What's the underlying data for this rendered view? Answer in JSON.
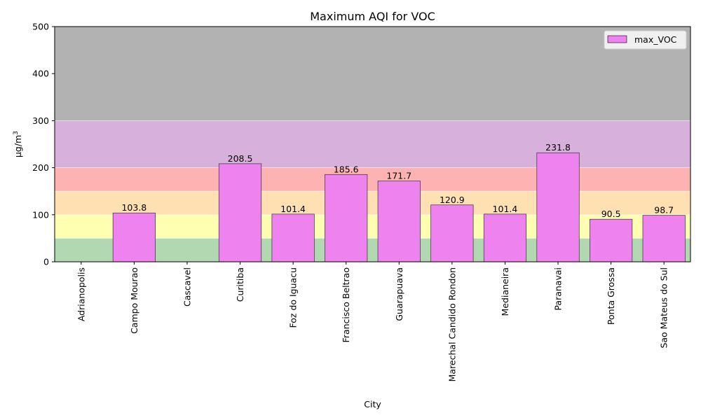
{
  "chart_data": {
    "type": "bar",
    "title": "Maximum AQI for VOC",
    "xlabel": "City",
    "ylabel": "μg/m³",
    "ylabel_base": "μg/m",
    "ylabel_sup": "3",
    "ylim": [
      0,
      500
    ],
    "yticks": [
      "0",
      "100",
      "200",
      "300",
      "400",
      "500"
    ],
    "ytick_values": [
      0,
      100,
      200,
      300,
      400,
      500
    ],
    "categories": [
      "Adrianopolis",
      "Campo Mourao",
      "Cascavel",
      "Curitiba",
      "Foz do Iguacu",
      "Francisco Beltrao",
      "Guarapuava",
      "Marechal Candido Rondon",
      "Medianeira",
      "Paranavai",
      "Ponta Grossa",
      "Sao Mateus do Sul"
    ],
    "series": [
      {
        "name": "max_VOC",
        "color": "#ee82ee",
        "values": [
          null,
          103.8,
          null,
          208.5,
          101.4,
          185.6,
          171.7,
          120.9,
          101.4,
          231.8,
          90.5,
          98.7
        ],
        "labels": [
          "",
          "103.8",
          "",
          "208.5",
          "101.4",
          "185.6",
          "171.7",
          "120.9",
          "101.4",
          "231.8",
          "90.5",
          "98.7"
        ]
      }
    ],
    "bands": [
      {
        "from": 0,
        "to": 50,
        "color": "#b2d8b2"
      },
      {
        "from": 50,
        "to": 100,
        "color": "#ffffb2"
      },
      {
        "from": 100,
        "to": 150,
        "color": "#ffe0b2"
      },
      {
        "from": 150,
        "to": 200,
        "color": "#ffb2b2"
      },
      {
        "from": 200,
        "to": 300,
        "color": "#d8b0dc"
      },
      {
        "from": 300,
        "to": 500,
        "color": "#b2b2b2"
      }
    ],
    "legend": {
      "position": "top-right",
      "label": "max_VOC"
    },
    "grid": false
  }
}
